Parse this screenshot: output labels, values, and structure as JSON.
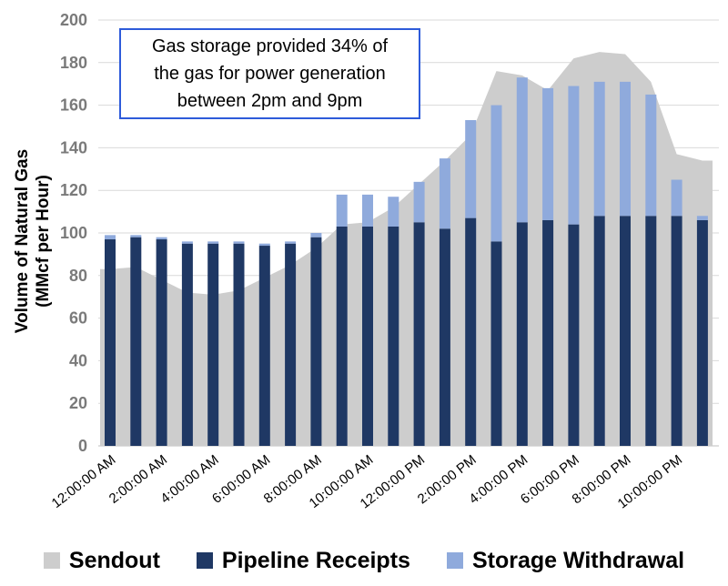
{
  "y_axis": {
    "title_line1": "Volume of Natural Gas",
    "title_line2": "(MMcf per Hour)"
  },
  "annotation": {
    "line1": "Gas storage provided 34% of",
    "line2": "the gas for power generation",
    "line3": "between 2pm and 9pm",
    "border_color": "#2E5BDA"
  },
  "chart_data": {
    "type": "area+stacked-bar combo",
    "categories": [
      "12:00:00 AM",
      "1:00:00 AM",
      "2:00:00 AM",
      "3:00:00 AM",
      "4:00:00 AM",
      "5:00:00 AM",
      "6:00:00 AM",
      "7:00:00 AM",
      "8:00:00 AM",
      "9:00:00 AM",
      "10:00:00 AM",
      "11:00:00 AM",
      "12:00:00 PM",
      "1:00:00 PM",
      "2:00:00 PM",
      "3:00:00 PM",
      "4:00:00 PM",
      "5:00:00 PM",
      "6:00:00 PM",
      "7:00:00 PM",
      "8:00:00 PM",
      "9:00:00 PM",
      "10:00:00 PM",
      "11:00:00 PM"
    ],
    "x_tick_labels_shown": [
      "12:00:00 AM",
      "2:00:00 AM",
      "4:00:00 AM",
      "6:00:00 AM",
      "8:00:00 AM",
      "10:00:00 AM",
      "12:00:00 PM",
      "2:00:00 PM",
      "4:00:00 PM",
      "6:00:00 PM",
      "8:00:00 PM",
      "10:00:00 PM"
    ],
    "x_tick_every": 2,
    "series": [
      {
        "name": "Sendout",
        "type": "area",
        "color": "#CDCDCD",
        "values": [
          83,
          84,
          78,
          72,
          71,
          73,
          79,
          85,
          93,
          104,
          105,
          112,
          123,
          134,
          146,
          176,
          174,
          167,
          182,
          185,
          184,
          171,
          137,
          134
        ]
      },
      {
        "name": "Pipeline Receipts",
        "type": "bar",
        "stack": "gas",
        "color": "#1F3864",
        "values": [
          97,
          98,
          97,
          95,
          95,
          95,
          94,
          95,
          98,
          103,
          103,
          103,
          105,
          102,
          107,
          96,
          105,
          106,
          104,
          108,
          108,
          108,
          108,
          106
        ]
      },
      {
        "name": "Storage Withdrawal",
        "type": "bar",
        "stack": "gas",
        "color": "#8FAADC",
        "values": [
          2,
          1,
          1,
          1,
          1,
          1,
          1,
          1,
          2,
          15,
          15,
          14,
          19,
          33,
          46,
          64,
          68,
          62,
          65,
          63,
          63,
          57,
          17,
          2
        ]
      }
    ],
    "ylabel": "Volume of Natural Gas (MMcf per Hour)",
    "ylim": [
      0,
      200
    ],
    "ytick_step": 20,
    "grid": true,
    "gridline_color": "#D9D9D9",
    "legend_position": "bottom"
  }
}
